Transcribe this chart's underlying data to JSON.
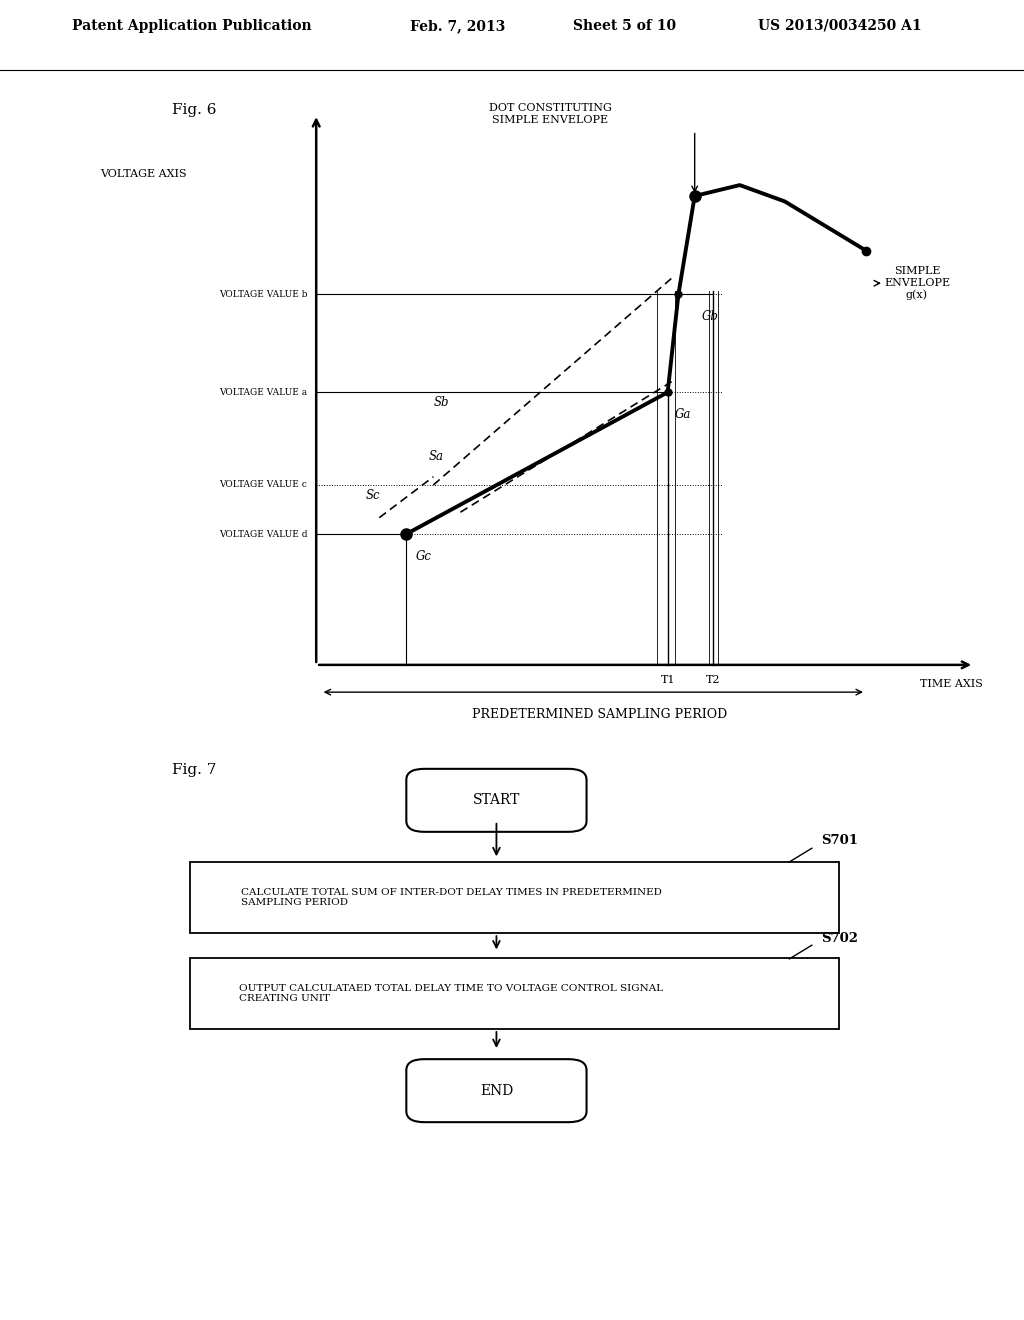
{
  "bg_color": "#ffffff",
  "header_text": "Patent Application Publication",
  "header_date": "Feb. 7, 2013",
  "header_sheet": "Sheet 5 of 10",
  "header_patent": "US 2013/0034250 A1",
  "fig6_label": "Fig. 6",
  "voltage_axis_label": "VOLTAGE AXIS",
  "time_axis_label": "TIME AXIS",
  "sampling_period_label": "PREDETERMINED SAMPLING PERIOD",
  "dot_label": "DOT CONSTITUTING\nSIMPLE ENVELOPE",
  "simple_envelope_label": "SIMPLE\nENVELOPE\ng(x)",
  "vb_label": "VOLTAGE VALUE b",
  "va_label": "VOLTAGE VALUE a",
  "vc_label": "VOLTAGE VALUE c",
  "vd_label": "VOLTAGE VALUE d",
  "vb": 0.68,
  "va": 0.5,
  "vc": 0.33,
  "vd": 0.24,
  "T1_label": "T1",
  "T2_label": "T2",
  "Sa_label": "Sa",
  "Sb_label": "Sb",
  "Sc_label": "Sc",
  "Ga_label": "Ga",
  "Gb_label": "Gb",
  "Gc_label": "Gc",
  "fig7_label": "Fig. 7",
  "start_label": "START",
  "end_label": "END",
  "s701_label": "S701",
  "s702_label": "S702",
  "box1_text": "CALCULATE TOTAL SUM OF INTER-DOT DELAY TIMES IN PREDETERMINED\nSAMPLING PERIOD",
  "box2_text": "OUTPUT CALCULATAED TOTAL DELAY TIME TO VOLTAGE CONTROL SIGNAL\nCREATING UNIT"
}
